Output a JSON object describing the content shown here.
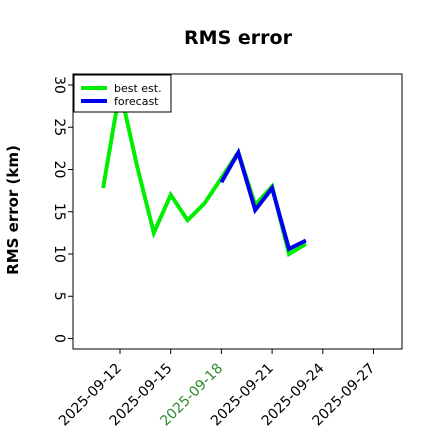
{
  "chart_data": {
    "type": "line",
    "title": "RMS error",
    "xlabel": "",
    "ylabel": "RMS error (km)",
    "ylim": [
      0,
      30
    ],
    "yticks": [
      0,
      5,
      10,
      15,
      20,
      25,
      30
    ],
    "xticks": [
      "2025-09-12",
      "2025-09-15",
      "2025-09-18",
      "2025-09-21",
      "2025-09-24",
      "2025-09-27"
    ],
    "highlighted_xtick": "2025-09-18",
    "highlight_color": "#2e8b2e",
    "grid": false,
    "legend_position": "top-left",
    "series": [
      {
        "name": "best est.",
        "color": "#00ee00",
        "x": [
          "2025-09-11",
          "2025-09-12",
          "2025-09-13",
          "2025-09-14",
          "2025-09-15",
          "2025-09-16",
          "2025-09-17",
          "2025-09-18",
          "2025-09-19",
          "2025-09-20",
          "2025-09-21",
          "2025-09-22",
          "2025-09-23"
        ],
        "y": [
          17.8,
          29.5,
          20.5,
          12.5,
          17.0,
          14.0,
          16.0,
          19.0,
          22.0,
          15.8,
          18.0,
          10.0,
          11.2
        ]
      },
      {
        "name": "forecast",
        "color": "#0000ee",
        "x": [
          "2025-09-18",
          "2025-09-19",
          "2025-09-20",
          "2025-09-21",
          "2025-09-22",
          "2025-09-23"
        ],
        "y": [
          18.5,
          22.0,
          15.2,
          17.8,
          10.6,
          11.6
        ]
      }
    ]
  }
}
